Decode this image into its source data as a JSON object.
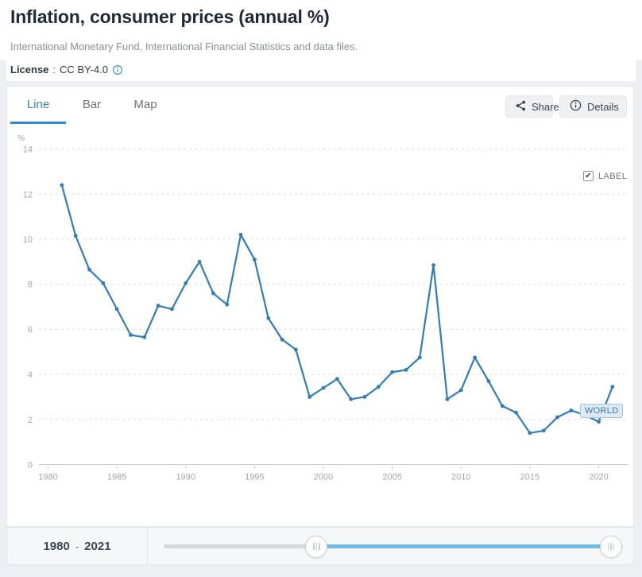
{
  "header": {
    "title": "Inflation, consumer prices (annual %)",
    "source": "International Monetary Fund, International Financial Statistics and data files."
  },
  "license": {
    "label": "License",
    "separator": ":",
    "value": "CC BY-4.0"
  },
  "tabs": [
    {
      "label": "Line",
      "active": true
    },
    {
      "label": "Bar",
      "active": false
    },
    {
      "label": "Map",
      "active": false
    }
  ],
  "toolbar": {
    "share": "Share",
    "details": "Details"
  },
  "chart_controls": {
    "label_checkbox": "LABEL",
    "checked": true
  },
  "chart_data": {
    "type": "line",
    "title": "Inflation, consumer prices (annual %)",
    "ylabel": "%",
    "ylim": [
      0,
      14
    ],
    "ytick_interval": 2,
    "xticks": [
      1980,
      1985,
      1990,
      1995,
      2000,
      2005,
      2010,
      2015,
      2020
    ],
    "grid": "horizontal-dashed",
    "legend_position": "end-of-line",
    "series": [
      {
        "name": "WORLD",
        "color": "#2f7dbe",
        "x": [
          1981,
          1982,
          1983,
          1984,
          1985,
          1986,
          1987,
          1988,
          1989,
          1990,
          1991,
          1992,
          1993,
          1994,
          1995,
          1996,
          1997,
          1998,
          1999,
          2000,
          2001,
          2002,
          2003,
          2004,
          2005,
          2006,
          2007,
          2008,
          2009,
          2010,
          2011,
          2012,
          2013,
          2014,
          2015,
          2016,
          2017,
          2018,
          2019,
          2020,
          2021
        ],
        "values": [
          12.4,
          10.15,
          8.65,
          8.05,
          6.9,
          5.75,
          5.65,
          7.05,
          6.9,
          8.05,
          9.0,
          7.6,
          7.1,
          10.2,
          9.1,
          6.5,
          5.55,
          5.1,
          3.0,
          3.4,
          3.8,
          2.9,
          3.0,
          3.45,
          4.1,
          4.2,
          4.75,
          8.85,
          2.9,
          3.3,
          4.75,
          3.7,
          2.6,
          2.3,
          1.4,
          1.5,
          2.1,
          2.4,
          2.2,
          1.9,
          3.45
        ]
      }
    ]
  },
  "range_bar": {
    "start": "1980",
    "separator": "-",
    "end": "2021",
    "slider": {
      "left_thumb_percent": 33.3,
      "right_thumb_percent": 97.4
    }
  },
  "colors": {
    "accent_blue": "#2e86d1",
    "line_blue": "#2f7dbe",
    "slider_blue": "#74b9ec",
    "info_blue": "#4a90d9",
    "axis_text": "#a2a7ad"
  }
}
